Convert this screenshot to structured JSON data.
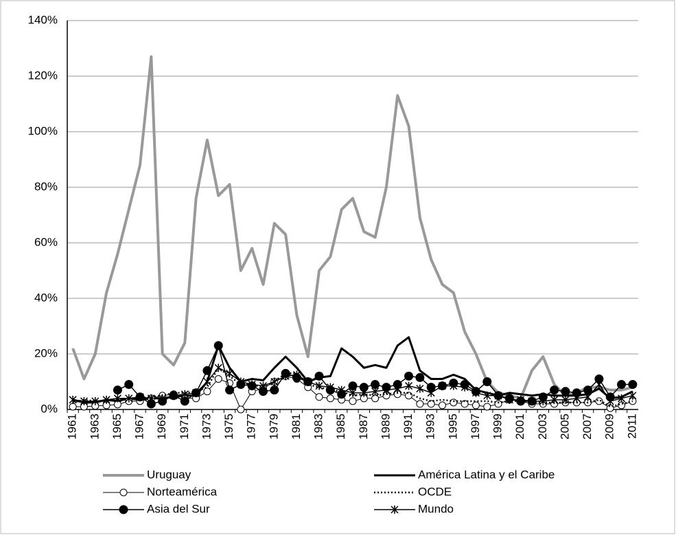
{
  "chart_data": {
    "type": "line",
    "categories": [
      "1961",
      null,
      "1963",
      null,
      "1965",
      null,
      "1967",
      null,
      "1969",
      null,
      "1971",
      null,
      "1973",
      null,
      "1975",
      null,
      "1977",
      null,
      "1979",
      null,
      "1981",
      null,
      "1983",
      null,
      "1985",
      null,
      "1987",
      null,
      "1989",
      null,
      "1991",
      null,
      "1993",
      null,
      "1995",
      null,
      "1997",
      null,
      "1999",
      null,
      "2001",
      null,
      "2003",
      null,
      "2005",
      null,
      "2007",
      null,
      "2009",
      null,
      "2011"
    ],
    "ylim": [
      0,
      140
    ],
    "yticks": [
      {
        "value": 0,
        "label": "0%"
      },
      {
        "value": 20,
        "label": "20%"
      },
      {
        "value": 40,
        "label": "40%"
      },
      {
        "value": 60,
        "label": "60%"
      },
      {
        "value": 80,
        "label": "80%"
      },
      {
        "value": 100,
        "label": "100%"
      },
      {
        "value": 120,
        "label": "120%"
      },
      {
        "value": 140,
        "label": "140%"
      }
    ],
    "grid": true,
    "legend": "bottom",
    "series": [
      {
        "name": "Uruguay",
        "color": "#999999",
        "line_width": 4,
        "values": [
          22,
          11,
          20,
          42,
          56,
          72,
          88,
          127,
          20,
          16,
          24,
          76,
          97,
          77,
          81,
          50,
          58,
          45,
          67,
          63,
          34,
          19,
          50,
          55,
          72,
          76,
          64,
          62,
          80,
          113,
          102,
          69,
          54,
          45,
          42,
          28,
          20,
          10,
          6,
          5,
          4,
          14,
          19,
          9,
          5,
          6,
          8,
          8,
          7,
          7,
          8
        ]
      },
      {
        "name": "América Latina y el Caribe",
        "color": "#000000",
        "line_width": 3,
        "values": [
          3.5,
          2.5,
          2.5,
          3.5,
          3,
          4,
          3.5,
          4,
          4,
          4.5,
          5,
          5,
          10,
          23,
          15,
          10,
          11,
          10.5,
          15,
          19,
          15,
          10,
          11.5,
          12,
          22,
          19,
          15,
          16,
          15,
          23,
          26,
          14,
          11,
          11,
          12.5,
          11,
          7,
          6,
          5,
          6,
          5.5,
          5,
          5.5,
          5,
          5,
          5,
          5.5,
          7.5,
          4,
          4.5,
          6.5
        ]
      },
      {
        "name": "Norteamérica",
        "color": "#000000",
        "line_width": 1,
        "marker": "open-circle",
        "values": [
          1,
          1,
          1.3,
          1.5,
          1.8,
          3,
          3,
          4,
          5,
          5.5,
          4,
          4,
          6.5,
          11,
          9.5,
          0,
          6.5,
          7.5,
          10,
          12,
          11,
          8,
          4.5,
          4,
          3.5,
          3,
          4,
          4,
          5,
          5.5,
          5,
          2,
          2,
          1.5,
          2.5,
          2,
          1.5,
          1,
          2,
          3.5,
          3,
          2,
          2,
          2,
          2.5,
          2.5,
          2.5,
          3,
          0.5,
          1.5,
          3
        ]
      },
      {
        "name": "OCDE",
        "color": "#000000",
        "line_width": 2.5,
        "dash": "dotted",
        "values": [
          2.5,
          3.5,
          3,
          3,
          3.5,
          4,
          4,
          4.5,
          5,
          6,
          6,
          6.5,
          8,
          15,
          12,
          9,
          9,
          8,
          10,
          13,
          13,
          9,
          8,
          7,
          6.5,
          5,
          5.5,
          5,
          5.5,
          6,
          6,
          4,
          3,
          3.5,
          3,
          3,
          3,
          3,
          2.5,
          3,
          3,
          2.5,
          2.5,
          2.5,
          2.5,
          2.5,
          2.5,
          3.5,
          1,
          2,
          3
        ]
      },
      {
        "name": "Asia del Sur",
        "color": "#000000",
        "line_width": 1.5,
        "marker": "circle",
        "values": [
          null,
          null,
          null,
          null,
          7,
          9,
          4.5,
          2,
          3,
          5,
          3,
          6,
          14,
          23,
          7,
          9,
          8.5,
          6.5,
          7,
          13,
          11.5,
          10,
          12,
          7,
          5.5,
          8.5,
          8,
          9,
          8,
          9,
          12,
          11.5,
          8,
          8.5,
          9.5,
          9,
          6.5,
          10,
          5,
          4,
          3,
          3,
          4.5,
          7,
          6.5,
          6,
          7,
          11,
          4.5,
          9,
          9
        ]
      },
      {
        "name": "Mundo",
        "color": "#000000",
        "line_width": 1.5,
        "marker": "star",
        "values": [
          3.5,
          3,
          3,
          3.5,
          4,
          4,
          4.5,
          4,
          4,
          5,
          5.5,
          6,
          10,
          15,
          13,
          10,
          9,
          8.5,
          10,
          12,
          12.5,
          10,
          8.5,
          8,
          7,
          6,
          6,
          6.5,
          7,
          7.5,
          8.5,
          7.5,
          6,
          8.5,
          8.5,
          8,
          6,
          5,
          5,
          3.5,
          3.5,
          3,
          3,
          3.5,
          3.5,
          4,
          4.5,
          9,
          3,
          4,
          5
        ]
      }
    ]
  }
}
